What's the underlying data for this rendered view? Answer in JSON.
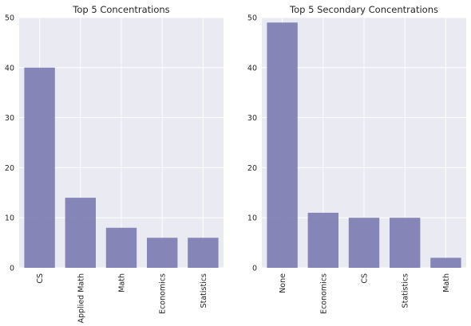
{
  "chart_data": [
    {
      "type": "bar",
      "title": "Top 5 Concentrations",
      "categories": [
        "CS",
        "Applied Math",
        "Math",
        "Economics",
        "Statistics"
      ],
      "values": [
        40,
        14,
        8,
        6,
        6
      ],
      "ylim": [
        0,
        50
      ],
      "yticks": [
        0,
        10,
        20,
        30,
        40,
        50
      ],
      "grid": true,
      "colors": {
        "bar": "#7f7fb3",
        "background": "#eaeaf2"
      }
    },
    {
      "type": "bar",
      "title": "Top 5 Secondary Concentrations",
      "categories": [
        "None",
        "Economics",
        "CS",
        "Statistics",
        "Math"
      ],
      "values": [
        49,
        11,
        10,
        10,
        2
      ],
      "ylim": [
        0,
        50
      ],
      "yticks": [
        0,
        10,
        20,
        30,
        40,
        50
      ],
      "grid": true,
      "colors": {
        "bar": "#7f7fb3",
        "background": "#eaeaf2"
      }
    }
  ]
}
